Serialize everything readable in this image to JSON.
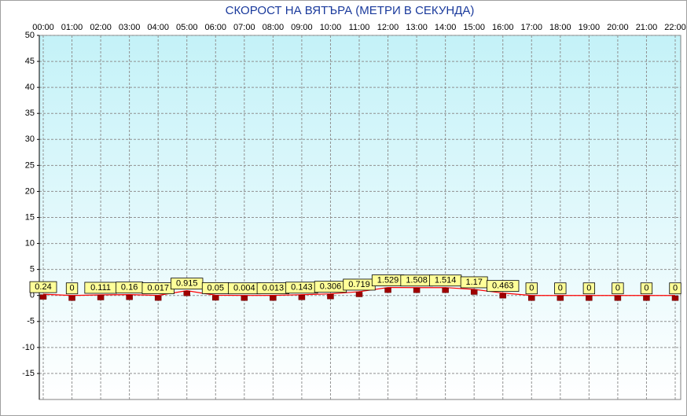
{
  "chart_data": {
    "type": "line",
    "title": "СКОРОСТ НА ВЯТЪРА (МЕТРИ В СЕКУНДА)",
    "categories": [
      "00:00",
      "01:00",
      "02:00",
      "03:00",
      "04:00",
      "05:00",
      "06:00",
      "07:00",
      "08:00",
      "09:00",
      "10:00",
      "11:00",
      "12:00",
      "13:00",
      "14:00",
      "15:00",
      "16:00",
      "17:00",
      "18:00",
      "19:00",
      "20:00",
      "21:00",
      "22:00"
    ],
    "series": [
      {
        "color": "#ff0000",
        "values": [
          0.24,
          0,
          0.111,
          0.16,
          0.017,
          0.915,
          0.05,
          0.004,
          0.013,
          0.143,
          0.306,
          0.719,
          1.529,
          1.508,
          1.514,
          1.17,
          0.463,
          0,
          0,
          0,
          0,
          0,
          0
        ]
      }
    ],
    "ylim": [
      -20,
      50
    ],
    "yticks": [
      -15,
      -10,
      -5,
      0,
      5,
      10,
      15,
      20,
      25,
      30,
      35,
      40,
      45,
      50
    ],
    "grid": true
  }
}
